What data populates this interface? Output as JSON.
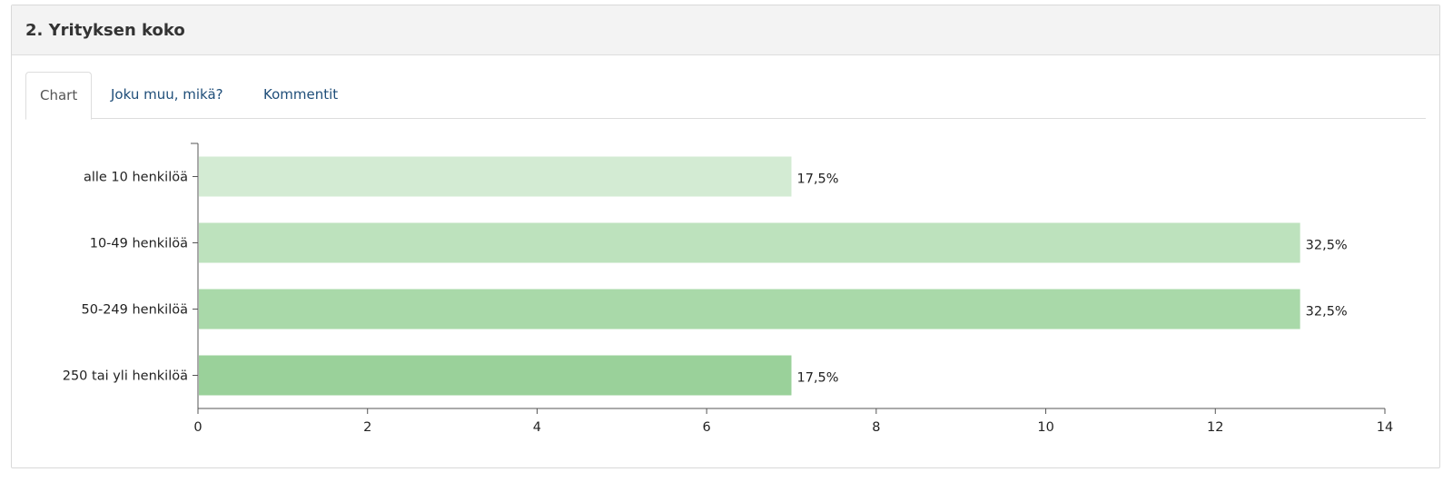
{
  "panel": {
    "title": "2. Yrityksen koko"
  },
  "tabs": [
    {
      "label": "Chart",
      "active": true
    },
    {
      "label": "Joku muu, mikä?",
      "active": false
    },
    {
      "label": "Kommentit",
      "active": false
    }
  ],
  "colors": {
    "link": "#1f4e79",
    "bars": [
      "#d3ebd3",
      "#bde2bd",
      "#a9d9a9",
      "#9ad19a"
    ],
    "axis": "#555555"
  },
  "chart_data": {
    "type": "bar",
    "orientation": "horizontal",
    "categories": [
      "alle 10 henkilöä",
      "10-49 henkilöä",
      "50-249 henkilöä",
      "250 tai yli henkilöä"
    ],
    "values": [
      7,
      13,
      13,
      7
    ],
    "value_labels": [
      "17,5%",
      "32,5%",
      "32,5%",
      "17,5%"
    ],
    "xlim": [
      0,
      14
    ],
    "xticks": [
      "0",
      "2",
      "4",
      "6",
      "8",
      "10",
      "12",
      "14"
    ],
    "grid": false
  }
}
